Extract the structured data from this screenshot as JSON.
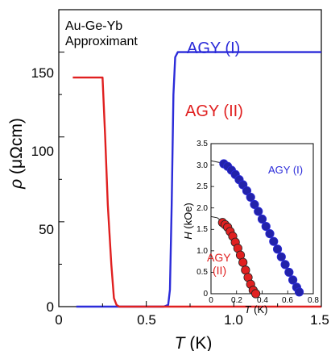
{
  "chart_data": [
    {
      "type": "line",
      "annotation_lines": [
        "Au-Ge-Yb",
        "Approximant"
      ],
      "xlabel_symbol": "T",
      "xlabel_unit": "(K)",
      "ylabel_symbol": "ρ",
      "ylabel_unit": "(μΩcm)",
      "xlim": [
        0,
        1.5
      ],
      "ylim": [
        0,
        175
      ],
      "xticks": [
        0,
        0.5,
        1.0,
        1.5
      ],
      "xtick_labels": [
        "0",
        "0.5",
        "1.0",
        "1.5"
      ],
      "yticks": [
        0,
        50,
        100,
        150
      ],
      "ytick_labels": [
        "0",
        "50",
        "100",
        "150"
      ],
      "grid": false,
      "series": [
        {
          "name": "AGY (I)",
          "color": "#2b2bd9",
          "x": [
            0.1,
            0.3,
            0.5,
            0.6,
            0.625,
            0.635,
            0.645,
            0.655,
            0.665,
            0.68,
            0.72,
            0.8,
            1.0,
            1.2,
            1.5
          ],
          "y": [
            0,
            0,
            0,
            0,
            1,
            10,
            60,
            125,
            147,
            150,
            150,
            150,
            150,
            150,
            150
          ]
        },
        {
          "name": "AGY (II)",
          "color": "#e02020",
          "x": [
            0.08,
            0.2,
            0.25,
            0.265,
            0.28,
            0.3,
            0.315,
            0.33,
            0.345,
            0.36,
            0.4,
            0.6,
            0.8,
            1.0,
            1.2,
            1.5
          ],
          "y": [
            135,
            135,
            135,
            100,
            60,
            25,
            5,
            1,
            0,
            0,
            0,
            0,
            0,
            0,
            0,
            0
          ]
        }
      ]
    },
    {
      "type": "scatter",
      "xlabel_symbol": "T",
      "xlabel_unit": "(K)",
      "ylabel_symbol": "H",
      "ylabel_unit": "(kOe)",
      "xlim": [
        0,
        0.8
      ],
      "ylim": [
        0,
        3.5
      ],
      "xticks": [
        0,
        0.2,
        0.4,
        0.6,
        0.8
      ],
      "xtick_labels": [
        "0",
        "0.2",
        "0.4",
        "0.6",
        "0.8"
      ],
      "yticks": [
        0,
        0.5,
        1.0,
        1.5,
        2.0,
        2.5,
        3.0,
        3.5
      ],
      "ytick_labels": [
        "0",
        "0.5",
        "1.0",
        "1.5",
        "2.0",
        "2.5",
        "3.0",
        "3.5"
      ],
      "grid": false,
      "series": [
        {
          "name": "AGY (I)",
          "label_lines": [
            "AGY (I)"
          ],
          "color": "#2b2bd9",
          "fill": "#2222aa",
          "fit_points": [
            [
              0,
              3.1
            ],
            [
              0.1,
              3.04
            ],
            [
              0.2,
              2.72
            ],
            [
              0.3,
              2.28
            ],
            [
              0.4,
              1.74
            ],
            [
              0.5,
              1.16
            ],
            [
              0.6,
              0.55
            ],
            [
              0.7,
              0.0
            ]
          ],
          "points": [
            [
              0.1,
              3.03
            ],
            [
              0.13,
              2.97
            ],
            [
              0.16,
              2.88
            ],
            [
              0.19,
              2.78
            ],
            [
              0.22,
              2.66
            ],
            [
              0.25,
              2.54
            ],
            [
              0.28,
              2.4
            ],
            [
              0.31,
              2.25
            ],
            [
              0.34,
              2.08
            ],
            [
              0.37,
              1.92
            ],
            [
              0.4,
              1.74
            ],
            [
              0.43,
              1.57
            ],
            [
              0.46,
              1.4
            ],
            [
              0.49,
              1.22
            ],
            [
              0.52,
              1.04
            ],
            [
              0.55,
              0.86
            ],
            [
              0.58,
              0.68
            ],
            [
              0.61,
              0.5
            ],
            [
              0.64,
              0.32
            ],
            [
              0.67,
              0.15
            ],
            [
              0.69,
              0.04
            ]
          ]
        },
        {
          "name": "AGY (II)",
          "label_lines": [
            "AGY",
            "(II)"
          ],
          "color": "#222222",
          "fill": "#e02020",
          "fit_points": [
            [
              0,
              1.8
            ],
            [
              0.05,
              1.77
            ],
            [
              0.1,
              1.65
            ],
            [
              0.15,
              1.43
            ],
            [
              0.2,
              1.11
            ],
            [
              0.25,
              0.72
            ],
            [
              0.3,
              0.3
            ],
            [
              0.35,
              0.0
            ]
          ],
          "points": [
            [
              0.09,
              1.66
            ],
            [
              0.11,
              1.61
            ],
            [
              0.13,
              1.55
            ],
            [
              0.15,
              1.45
            ],
            [
              0.17,
              1.34
            ],
            [
              0.19,
              1.2
            ],
            [
              0.21,
              1.06
            ],
            [
              0.23,
              0.9
            ],
            [
              0.25,
              0.73
            ],
            [
              0.27,
              0.55
            ],
            [
              0.29,
              0.38
            ],
            [
              0.31,
              0.22
            ],
            [
              0.33,
              0.08
            ],
            [
              0.35,
              0.0
            ]
          ]
        }
      ]
    }
  ]
}
